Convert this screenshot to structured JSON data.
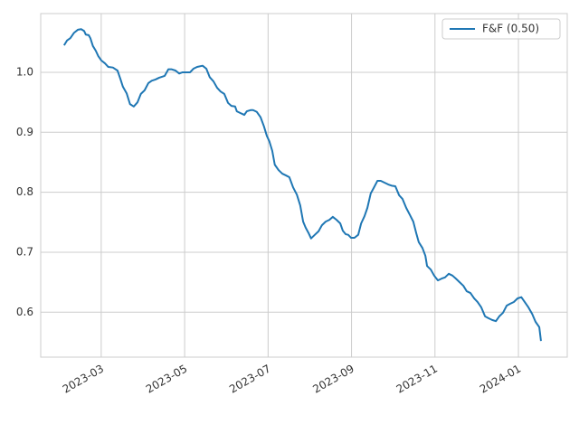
{
  "chart_data": {
    "type": "line",
    "x": [
      2.11,
      2.18,
      2.26,
      2.35,
      2.44,
      2.52,
      2.59,
      2.63,
      2.7,
      2.74,
      2.8,
      2.87,
      2.93,
      3.0,
      3.09,
      3.17,
      3.28,
      3.39,
      3.46,
      3.52,
      3.61,
      3.69,
      3.78,
      3.87,
      3.95,
      4.04,
      4.13,
      4.21,
      4.3,
      4.39,
      4.52,
      4.61,
      4.69,
      4.78,
      4.87,
      4.95,
      5.04,
      5.13,
      5.21,
      5.3,
      5.43,
      5.52,
      5.6,
      5.69,
      5.78,
      5.86,
      5.95,
      6.04,
      6.12,
      6.21,
      6.25,
      6.34,
      6.43,
      6.49,
      6.58,
      6.64,
      6.73,
      6.82,
      6.9,
      6.97,
      7.03,
      7.1,
      7.16,
      7.25,
      7.34,
      7.43,
      7.51,
      7.6,
      7.69,
      7.77,
      7.84,
      7.9,
      7.97,
      8.03,
      8.12,
      8.21,
      8.29,
      8.38,
      8.47,
      8.55,
      8.64,
      8.73,
      8.79,
      8.86,
      8.92,
      8.99,
      9.07,
      9.16,
      9.23,
      9.31,
      9.38,
      9.46,
      9.53,
      9.62,
      9.7,
      9.79,
      9.88,
      9.96,
      10.05,
      10.14,
      10.22,
      10.31,
      10.4,
      10.48,
      10.55,
      10.61,
      10.7,
      10.77,
      10.81,
      10.9,
      10.98,
      11.07,
      11.16,
      11.24,
      11.33,
      11.42,
      11.5,
      11.59,
      11.68,
      11.76,
      11.85,
      11.94,
      12.02,
      12.11,
      12.2,
      12.28,
      12.37,
      12.46,
      12.54,
      12.63,
      12.72,
      12.8,
      12.89,
      12.98,
      13.07,
      13.15,
      13.24,
      13.33,
      13.41,
      13.5,
      13.54
    ],
    "series": [
      {
        "name": "F&F (0.50)",
        "color": "#1f77b4",
        "values": [
          1.045,
          1.053,
          1.057,
          1.066,
          1.071,
          1.072,
          1.069,
          1.063,
          1.062,
          1.057,
          1.044,
          1.036,
          1.027,
          1.02,
          1.015,
          1.009,
          1.008,
          1.003,
          0.989,
          0.976,
          0.965,
          0.947,
          0.943,
          0.95,
          0.964,
          0.97,
          0.982,
          0.986,
          0.988,
          0.991,
          0.994,
          1.005,
          1.005,
          1.003,
          0.998,
          1.0,
          1.0,
          1.0,
          1.006,
          1.009,
          1.011,
          1.006,
          0.992,
          0.985,
          0.974,
          0.968,
          0.964,
          0.949,
          0.944,
          0.943,
          0.935,
          0.932,
          0.929,
          0.935,
          0.937,
          0.937,
          0.934,
          0.925,
          0.91,
          0.894,
          0.885,
          0.869,
          0.846,
          0.837,
          0.831,
          0.828,
          0.825,
          0.808,
          0.796,
          0.778,
          0.751,
          0.741,
          0.732,
          0.723,
          0.729,
          0.735,
          0.745,
          0.751,
          0.754,
          0.759,
          0.754,
          0.748,
          0.736,
          0.73,
          0.729,
          0.724,
          0.724,
          0.729,
          0.748,
          0.76,
          0.774,
          0.798,
          0.807,
          0.819,
          0.819,
          0.816,
          0.813,
          0.811,
          0.81,
          0.795,
          0.789,
          0.774,
          0.762,
          0.751,
          0.732,
          0.717,
          0.707,
          0.694,
          0.677,
          0.671,
          0.661,
          0.653,
          0.656,
          0.658,
          0.664,
          0.661,
          0.656,
          0.65,
          0.644,
          0.635,
          0.632,
          0.623,
          0.617,
          0.608,
          0.593,
          0.59,
          0.587,
          0.585,
          0.593,
          0.599,
          0.611,
          0.614,
          0.617,
          0.623,
          0.625,
          0.617,
          0.608,
          0.597,
          0.584,
          0.575,
          0.552
        ]
      }
    ],
    "xlim": [
      1.55,
      14.17
    ],
    "xticks": [
      {
        "value": 3,
        "label": "2023-03"
      },
      {
        "value": 5,
        "label": "2023-05"
      },
      {
        "value": 7,
        "label": "2023-07"
      },
      {
        "value": 9,
        "label": "2023-09"
      },
      {
        "value": 11,
        "label": "2023-11"
      },
      {
        "value": 13,
        "label": "2024-01"
      }
    ],
    "ylim": [
      0.525,
      1.098
    ],
    "yticks": [
      0.6,
      0.7,
      0.8,
      0.9,
      {
        "value": 1.0,
        "label": "1.0"
      }
    ],
    "grid": true,
    "legend": "upper right"
  }
}
